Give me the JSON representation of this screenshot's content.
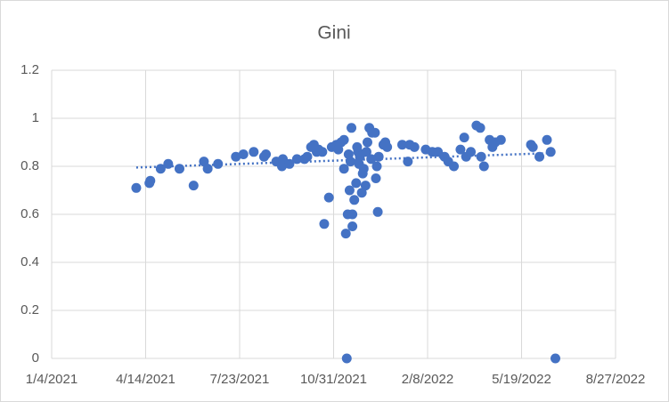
{
  "chart_data": {
    "type": "scatter",
    "title": "Gini",
    "color": "#4472c4",
    "grid": true,
    "x": [
      44290,
      44304,
      44305,
      44316,
      44324,
      44336,
      44351,
      44362,
      44366,
      44377,
      44396,
      44404,
      44415,
      44426,
      44428,
      44439,
      44445,
      44446,
      44453,
      44461,
      44469,
      44472,
      44476,
      44479,
      44482,
      44484,
      44488,
      44490,
      44495,
      44498,
      44503,
      44508,
      44511,
      44511,
      44513,
      44514,
      44515,
      44517,
      44519,
      44520,
      44520,
      44522,
      44524,
      44526,
      44528,
      44530,
      44532,
      44534,
      44536,
      44538,
      44541,
      44544,
      44545,
      44546,
      44547,
      44548,
      44553,
      44555,
      44557,
      44573,
      44579,
      44581,
      44586,
      44598,
      44605,
      44611,
      44618,
      44622,
      44628,
      44635,
      44639,
      44641,
      44646,
      44652,
      44656,
      44657,
      44660,
      44666,
      44669,
      44672,
      44678,
      44710,
      44712,
      44719,
      44727,
      44731,
      44736,
      44505,
      44516,
      44518,
      44525,
      44527,
      44531,
      44535,
      44540
    ],
    "values": [
      0.71,
      0.73,
      0.74,
      0.79,
      0.81,
      0.79,
      0.72,
      0.82,
      0.79,
      0.81,
      0.84,
      0.85,
      0.86,
      0.84,
      0.85,
      0.82,
      0.8,
      0.83,
      0.81,
      0.83,
      0.83,
      0.84,
      0.88,
      0.89,
      0.86,
      0.87,
      0.86,
      0.56,
      0.67,
      0.88,
      0.89,
      0.9,
      0.91,
      0.79,
      0.52,
      0,
      0.6,
      0.7,
      0.96,
      0.6,
      0.55,
      0.66,
      0.73,
      0.86,
      0.84,
      0.69,
      0.79,
      0.72,
      0.9,
      0.96,
      0.94,
      0.94,
      0.75,
      0.8,
      0.61,
      0.84,
      0.89,
      0.9,
      0.88,
      0.89,
      0.82,
      0.89,
      0.88,
      0.87,
      0.86,
      0.86,
      0.84,
      0.82,
      0.8,
      0.87,
      0.92,
      0.84,
      0.86,
      0.97,
      0.96,
      0.84,
      0.8,
      0.91,
      0.88,
      0.9,
      0.91,
      0.89,
      0.88,
      0.84,
      0.91,
      0.86,
      0,
      0.87,
      0.85,
      0.82,
      0.88,
      0.81,
      0.77,
      0.86,
      0.83
    ],
    "trendline": {
      "x": [
        44290,
        44731
      ],
      "values": [
        0.795,
        0.855
      ]
    },
    "xlim": [
      44200,
      44800
    ],
    "xticks": [
      {
        "value": 44200,
        "label": "1/4/2021"
      },
      {
        "value": 44300,
        "label": "4/14/2021"
      },
      {
        "value": 44400,
        "label": "7/23/2021"
      },
      {
        "value": 44500,
        "label": "10/31/2021"
      },
      {
        "value": 44600,
        "label": "2/8/2022"
      },
      {
        "value": 44700,
        "label": "5/19/2022"
      },
      {
        "value": 44800,
        "label": "8/27/2022"
      }
    ],
    "ylim": [
      0,
      1.2
    ],
    "yticks": [
      0,
      {
        "value": 0.2,
        "label": "0.2"
      },
      {
        "value": 0.4,
        "label": "0.4"
      },
      {
        "value": 0.6,
        "label": "0.6"
      },
      {
        "value": 0.8,
        "label": "0.8"
      },
      1,
      {
        "value": 1.2,
        "label": "1.2"
      }
    ]
  }
}
